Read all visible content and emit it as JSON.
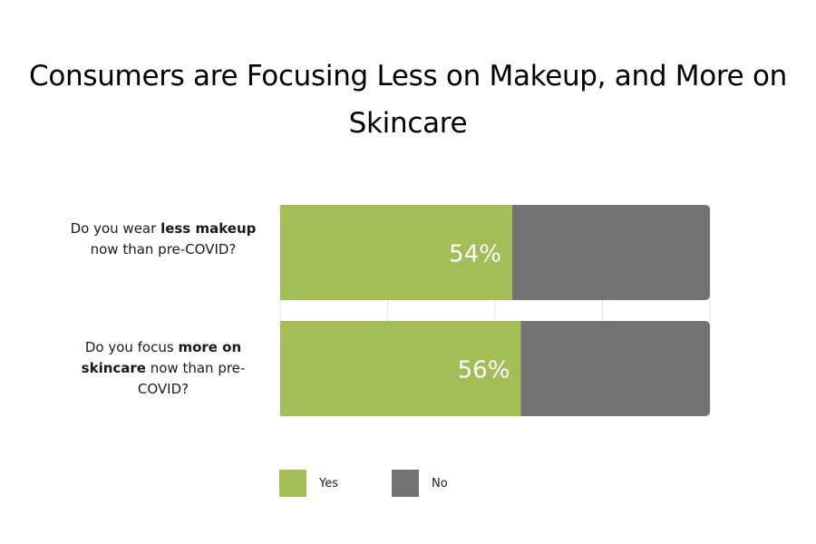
{
  "title": "Consumers are Focusing Less on Makeup, and More on Skincare",
  "colors": {
    "yes": "#a3be56",
    "no": "#727272",
    "gridline": "#e6e6e6"
  },
  "chart_data": {
    "type": "bar",
    "orientation": "horizontal",
    "stacked": true,
    "categories": [
      {
        "pre": "Do you wear ",
        "bold": "less makeup",
        "post": " now than pre-COVID?"
      },
      {
        "pre": "Do you focus ",
        "bold": "more on skincare",
        "post": " now than pre-COVID?"
      }
    ],
    "series": [
      {
        "name": "Yes",
        "values": [
          54,
          56
        ],
        "data_labels": [
          "54%",
          "56%"
        ]
      },
      {
        "name": "No",
        "values": [
          46,
          44
        ]
      }
    ],
    "xlim": [
      0,
      100
    ],
    "legend_position": "bottom"
  }
}
